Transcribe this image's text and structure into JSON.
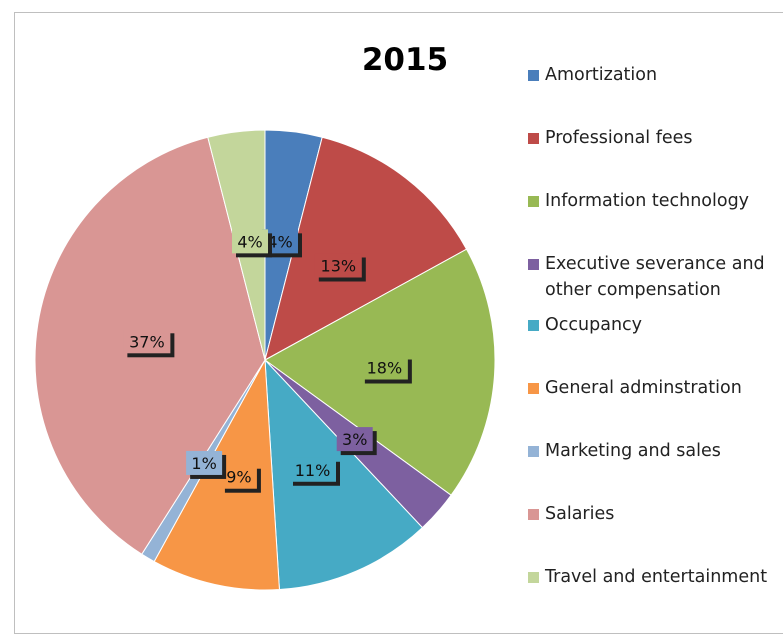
{
  "chart_data": {
    "type": "pie",
    "title": "2015",
    "categories": [
      "Amortization",
      "Professional fees",
      "Information technology",
      "Executive severance and other compensation",
      "Occupancy",
      "General adminstration",
      "Marketing and sales",
      "Salaries",
      "Travel and entertainment"
    ],
    "values": [
      4,
      13,
      18,
      3,
      11,
      9,
      1,
      37,
      4
    ],
    "value_labels": [
      "4%",
      "13%",
      "18%",
      "3%",
      "11%",
      "9%",
      "1%",
      "37%",
      "4%"
    ],
    "colors": [
      "#4a7ebb",
      "#be4b48",
      "#98b954",
      "#7d60a0",
      "#46aac5",
      "#f79646",
      "#94b3d6",
      "#d99694",
      "#c3d69b"
    ],
    "legend": "right"
  }
}
